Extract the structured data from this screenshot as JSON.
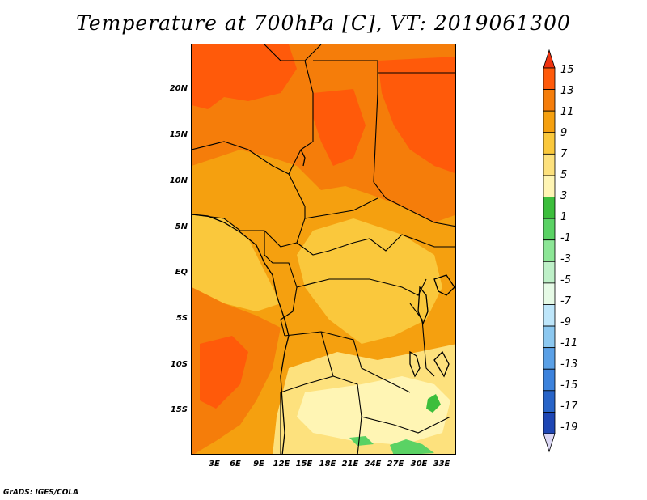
{
  "title": "Temperature at 700hPa [C], VT: 2019061300",
  "footer": "GrADS: IGES/COLA",
  "axes": {
    "lat_labels": [
      "20N",
      "15N",
      "10N",
      "5N",
      "EQ",
      "5S",
      "10S",
      "15S"
    ],
    "lon_labels": [
      "3E",
      "6E",
      "9E",
      "12E",
      "15E",
      "18E",
      "21E",
      "24E",
      "27E",
      "30E",
      "33E"
    ]
  },
  "legend": {
    "labels": [
      "15",
      "13",
      "11",
      "9",
      "7",
      "5",
      "3",
      "1",
      "-1",
      "-3",
      "-5",
      "-7",
      "-9",
      "-11",
      "-13",
      "-15",
      "-17",
      "-19"
    ],
    "colors": [
      "#f0320f",
      "#ff5a0a",
      "#f57d0a",
      "#f5a00f",
      "#fac83c",
      "#fde17d",
      "#fff5b4",
      "#3cbe3c",
      "#5ad264",
      "#8ce696",
      "#bef0c8",
      "#e6fae6",
      "#bee6fa",
      "#8cc8f0",
      "#5aa0e6",
      "#3c82dc",
      "#2864c8",
      "#1e46b4",
      "#0a1e8c"
    ]
  },
  "map_colors": {
    "hot": "#ff5a0a",
    "warm": "#f57d0a",
    "mid": "#f5a00f",
    "mild": "#fac83c",
    "cool": "#fde17d",
    "cold": "#fff5b4",
    "green": "#3cbe3c",
    "lightgreen": "#5ad264"
  }
}
